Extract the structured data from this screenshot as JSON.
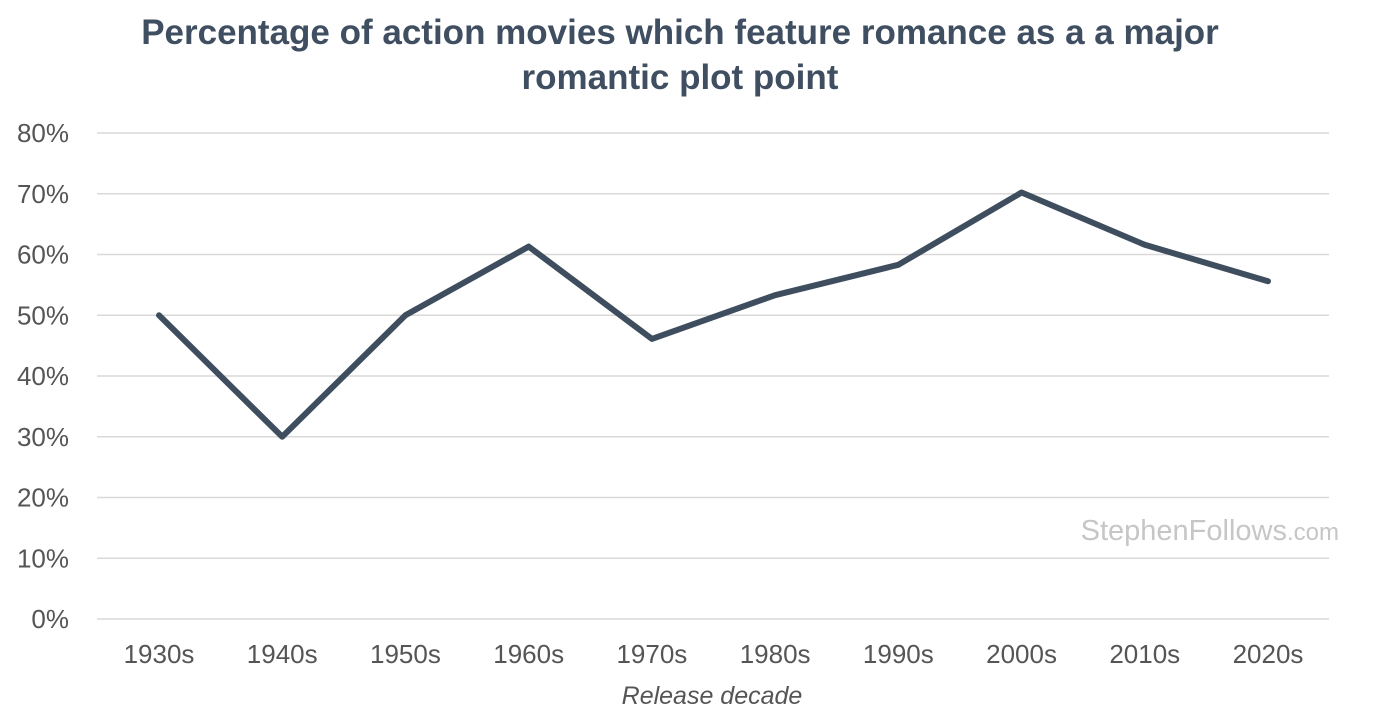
{
  "chart_data": {
    "type": "line",
    "title": "Percentage of action movies which feature romance as a a major romantic plot point",
    "xlabel": "Release decade",
    "ylabel": "",
    "categories": [
      "1930s",
      "1940s",
      "1950s",
      "1960s",
      "1970s",
      "1980s",
      "1990s",
      "2000s",
      "2010s",
      "2020s"
    ],
    "series": [
      {
        "values": [
          50,
          30,
          50,
          61.3,
          46.1,
          53.3,
          58.3,
          70.2,
          61.6,
          55.6
        ],
        "color": "#3f4e5e"
      }
    ],
    "ylim": [
      0,
      80
    ],
    "yticks": [
      0,
      10,
      20,
      30,
      40,
      50,
      60,
      70,
      80
    ],
    "ytick_labels": [
      "0%",
      "10%",
      "20%",
      "30%",
      "40%",
      "50%",
      "60%",
      "70%",
      "80%"
    ],
    "grid": true,
    "legend": "none",
    "watermark": {
      "main": "StephenFollows",
      "suffix": ".com"
    },
    "colors": {
      "title": "#3f4e60",
      "line": "#3f4e5e",
      "grid": "#d9d9d9",
      "tick_text": "#555555",
      "watermark": "#c6c6c6"
    }
  }
}
